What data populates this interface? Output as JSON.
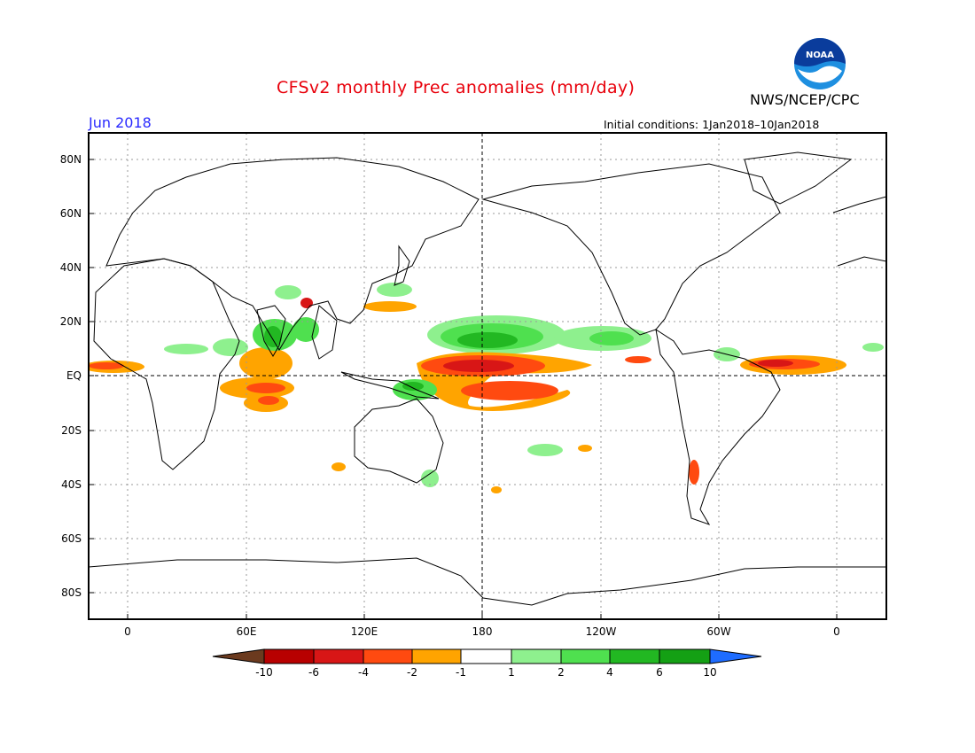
{
  "header": {
    "title": "CFSv2 monthly Prec anomalies (mm/day)",
    "agency": "NWS/NCEP/CPC",
    "valid_month": "Jun 2018",
    "initial_conditions_label": "Initial conditions:",
    "initial_conditions_value": "1Jan2018–10Jan2018",
    "logo_text": "NOAA"
  },
  "axes": {
    "lat_labels": [
      "80N",
      "60N",
      "40N",
      "20N",
      "EQ",
      "20S",
      "40S",
      "60S",
      "80S"
    ],
    "lon_labels": [
      "0",
      "60E",
      "120E",
      "180",
      "120W",
      "60W",
      "0"
    ]
  },
  "colorbar": {
    "labels": [
      "-10",
      "-6",
      "-4",
      "-2",
      "-1",
      "1",
      "2",
      "4",
      "6",
      "10"
    ],
    "colors": [
      "#6b3a1e",
      "#b80000",
      "#d81616",
      "#ff4a10",
      "#ffa400",
      "#ffffff",
      "#8ef08e",
      "#4fe04f",
      "#22b822",
      "#14a014",
      "#1e6cff"
    ]
  },
  "colors": {
    "title": "#e8000b",
    "month": "#2a2aff",
    "ocean_grid": "#999999"
  }
}
